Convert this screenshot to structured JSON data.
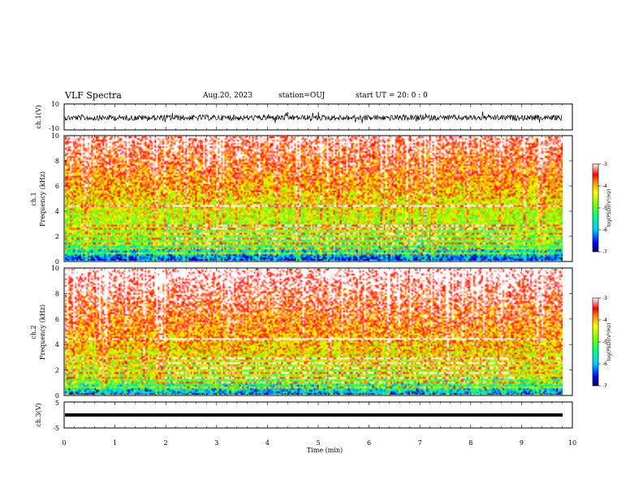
{
  "header": {
    "title": "VLF Spectra",
    "date": "Aug.20, 2023",
    "station": "station=OUJ",
    "start": "start  UT =   20: 0  : 0"
  },
  "chart_data": [
    {
      "type": "line",
      "panel": "ch1-waveform",
      "ylabel": "ch.1(V)",
      "ylim": [
        -10,
        10
      ],
      "y_ticks": [
        "10",
        "-10"
      ],
      "xlim": [
        0,
        10
      ]
    },
    {
      "type": "heatmap",
      "panel": "ch1-spectrogram",
      "ylabel_line1": "ch.1",
      "ylabel_line2": "Frequency (kHz)",
      "ylim": [
        0,
        10
      ],
      "y_ticks": [
        "0",
        "2",
        "4",
        "6",
        "8",
        "10"
      ],
      "xlim": [
        0,
        9.8
      ],
      "colorbar": {
        "label": "log(PSD)(V²/Hz)",
        "range": [
          -7,
          -3
        ],
        "ticks": [
          "-3",
          "-4",
          "-5",
          "-6",
          "-7"
        ]
      }
    },
    {
      "type": "heatmap",
      "panel": "ch2-spectrogram",
      "ylabel_line1": "ch.2",
      "ylabel_line2": "Frequency (kHz)",
      "ylim": [
        0,
        10
      ],
      "y_ticks": [
        "0",
        "2",
        "4",
        "6",
        "8",
        "10"
      ],
      "xlim": [
        0,
        9.8
      ],
      "colorbar": {
        "label": "log(PSD)(V²/Hz)",
        "range": [
          -7,
          -3
        ],
        "ticks": [
          "-3",
          "-4",
          "-5",
          "-6",
          "-7"
        ]
      }
    },
    {
      "type": "line",
      "panel": "ch3-waveform",
      "ylabel": "ch.3(V)",
      "ylim": [
        -5,
        5
      ],
      "y_ticks": [
        "5",
        "-5"
      ],
      "xlim": [
        0,
        10
      ]
    }
  ],
  "x_axis": {
    "label": "Time (min)",
    "ticks": [
      "0",
      "1",
      "2",
      "3",
      "4",
      "5",
      "6",
      "7",
      "8",
      "9",
      "10"
    ]
  }
}
